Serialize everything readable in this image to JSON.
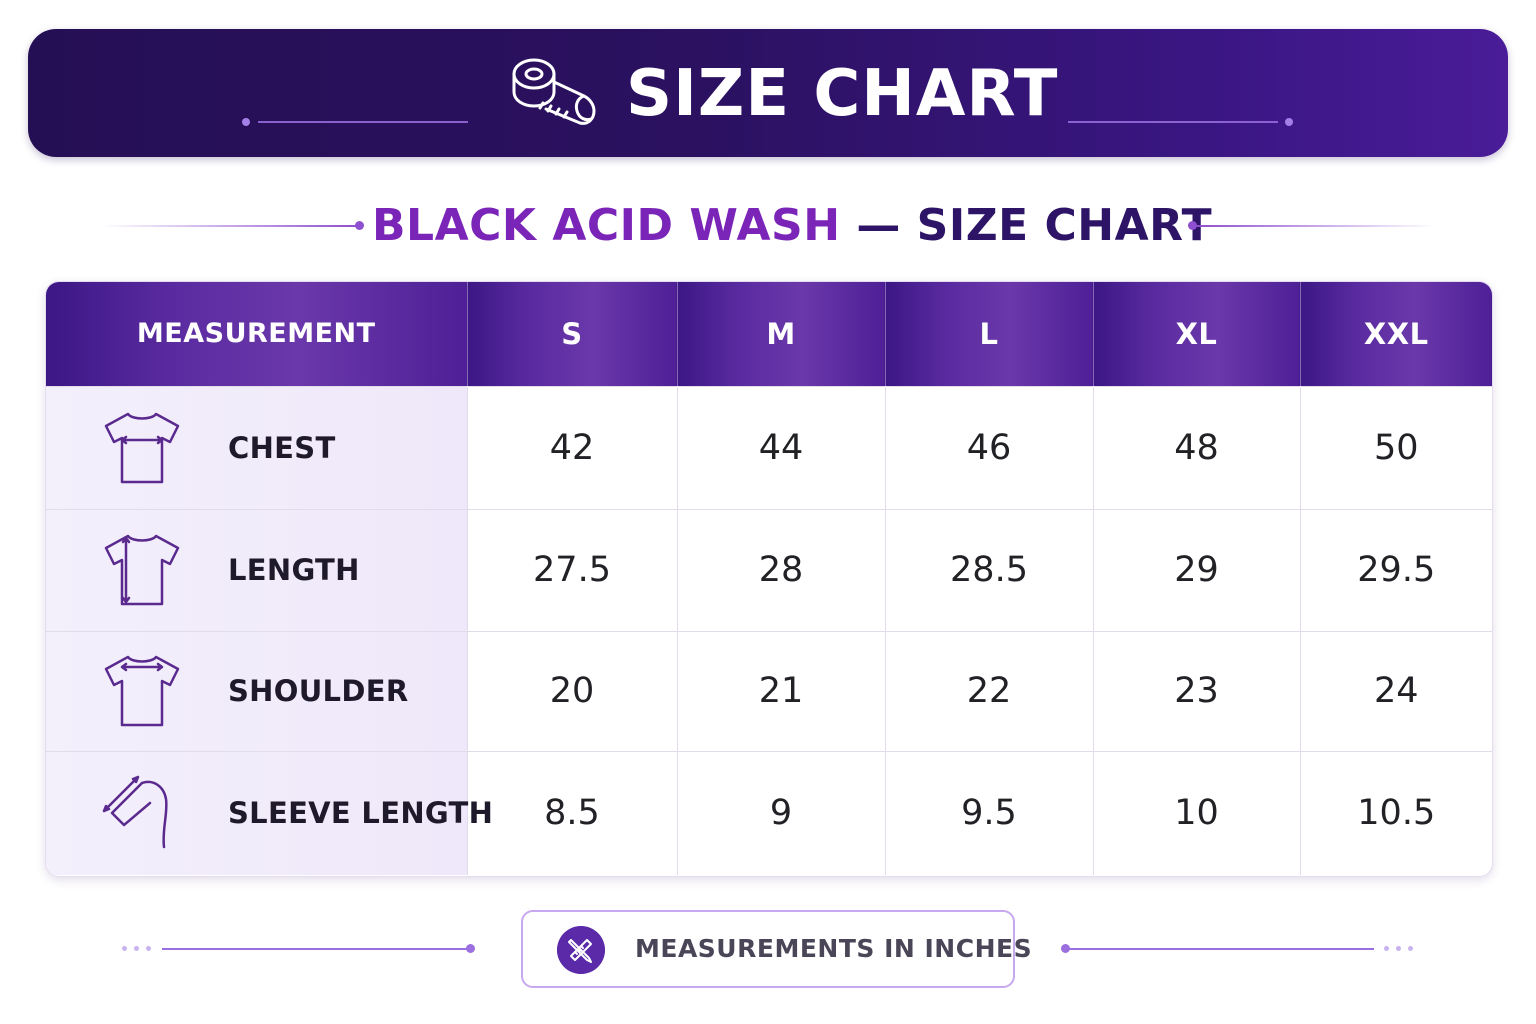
{
  "banner": {
    "title": "SIZE CHART",
    "icon": "measuring-tape-icon"
  },
  "subtitle": {
    "part1": "BLACK ACID WASH",
    "part2": "— SIZE CHART"
  },
  "table": {
    "header": [
      "MEASUREMENT",
      "S",
      "M",
      "L",
      "XL",
      "XXL"
    ],
    "rows": [
      {
        "label": "CHEST",
        "icon": "tshirt-chest-icon",
        "values": [
          "42",
          "44",
          "46",
          "48",
          "50"
        ]
      },
      {
        "label": "LENGTH",
        "icon": "tshirt-length-icon",
        "values": [
          "27.5",
          "28",
          "28.5",
          "29",
          "29.5"
        ]
      },
      {
        "label": "SHOULDER",
        "icon": "tshirt-shoulder-icon",
        "values": [
          "20",
          "21",
          "22",
          "23",
          "24"
        ]
      },
      {
        "label": "SLEEVE LENGTH",
        "icon": "sleeve-length-icon",
        "values": [
          "8.5",
          "9",
          "9.5",
          "10",
          "10.5"
        ]
      }
    ]
  },
  "footer": {
    "note": "MEASUREMENTS IN INCHES",
    "icon": "ruler-pencil-icon"
  },
  "colors": {
    "banner": "#2b1160",
    "header": "#5a2ba0",
    "accent": "#7a25b8",
    "label_bg": "#f1ebfa"
  }
}
